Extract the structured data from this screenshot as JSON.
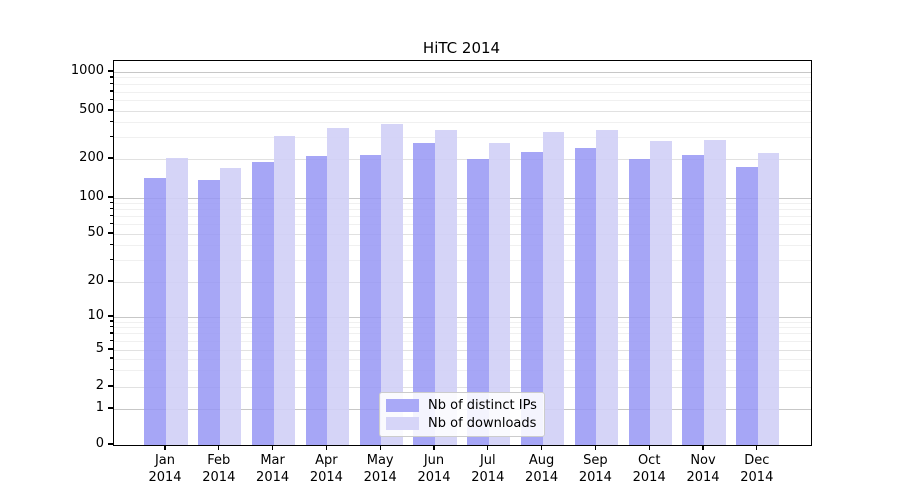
{
  "chart_data": {
    "type": "bar",
    "title": "HiTC 2014",
    "x": {
      "months": [
        "Jan",
        "Feb",
        "Mar",
        "Apr",
        "May",
        "Jun",
        "Jul",
        "Aug",
        "Sep",
        "Oct",
        "Nov",
        "Dec"
      ],
      "year": "2014"
    },
    "series": [
      {
        "name": "Nb of distinct IPs",
        "values": [
          143,
          137,
          190,
          210,
          215,
          270,
          200,
          228,
          246,
          201,
          218,
          175
        ],
        "bar_color": "rgba(150,150,244,0.85)",
        "legend_color": "#a9a9f7"
      },
      {
        "name": "Nb of downloads",
        "values": [
          203,
          170,
          310,
          362,
          392,
          347,
          272,
          335,
          350,
          282,
          288,
          226
        ],
        "bar_color": "rgba(208,207,246,0.9)",
        "legend_color": "#d6d5f8"
      }
    ],
    "y_axis": {
      "scale": "symlog",
      "ticks": [
        0,
        1,
        2,
        5,
        10,
        20,
        50,
        100,
        200,
        500,
        1000
      ],
      "minor_ticks": [
        3,
        4,
        6,
        7,
        8,
        9,
        30,
        40,
        60,
        70,
        80,
        90,
        300,
        400,
        600,
        700,
        800,
        900
      ],
      "range": [
        0,
        1100
      ]
    },
    "grid": {
      "visible": true,
      "major_color": "#c7c7c7",
      "mid_color": "#e1e1e1",
      "minor_color": "#f0f0f0"
    },
    "legend_position": "lower-center"
  }
}
